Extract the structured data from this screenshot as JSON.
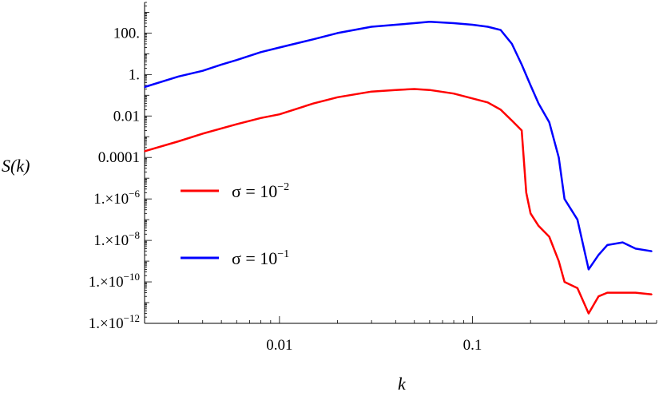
{
  "chart_data": {
    "type": "line",
    "title": "",
    "xlabel": "k",
    "ylabel": "S(k)",
    "xscale": "log",
    "yscale": "log",
    "xlim": [
      0.002,
      0.9
    ],
    "ylim": [
      1e-12,
      3000
    ],
    "grid": false,
    "legend_position": "center-left",
    "x_ticks": [
      {
        "value": 0.01,
        "label": "0.01"
      },
      {
        "value": 0.1,
        "label": "0.1"
      }
    ],
    "y_ticks": [
      {
        "value": 100,
        "label": "100."
      },
      {
        "value": 1,
        "label": "1."
      },
      {
        "value": 0.01,
        "label": "0.01"
      },
      {
        "value": 0.0001,
        "label": "0.0001"
      },
      {
        "value": 1e-06,
        "label": "1.×10",
        "exp": "−6"
      },
      {
        "value": 1e-08,
        "label": "1.×10",
        "exp": "−8"
      },
      {
        "value": 1e-10,
        "label": "1.×10",
        "exp": "−10"
      },
      {
        "value": 1e-12,
        "label": "1.×10",
        "exp": "−12"
      }
    ],
    "series": [
      {
        "name": "σ = 10⁻²",
        "legend_main": "σ = 10",
        "legend_exp": "−2",
        "color": "#ff0000",
        "x": [
          0.002,
          0.003,
          0.004,
          0.006,
          0.008,
          0.01,
          0.015,
          0.02,
          0.03,
          0.04,
          0.05,
          0.06,
          0.08,
          0.1,
          0.12,
          0.14,
          0.16,
          0.18,
          0.19,
          0.2,
          0.22,
          0.25,
          0.28,
          0.3,
          0.35,
          0.4,
          0.45,
          0.5,
          0.6,
          0.7,
          0.85
        ],
        "y": [
          0.0002,
          0.0006,
          0.0014,
          0.004,
          0.008,
          0.012,
          0.04,
          0.08,
          0.15,
          0.18,
          0.2,
          0.18,
          0.12,
          0.07,
          0.045,
          0.02,
          0.006,
          0.002,
          2e-06,
          2e-07,
          5e-08,
          1.5e-08,
          1e-09,
          1e-10,
          5e-11,
          3e-12,
          2e-11,
          3e-11,
          3e-11,
          3e-11,
          2.5e-11
        ]
      },
      {
        "name": "σ = 10⁻¹",
        "legend_main": "σ = 10",
        "legend_exp": "−1",
        "color": "#0000ff",
        "x": [
          0.002,
          0.003,
          0.004,
          0.005,
          0.006,
          0.008,
          0.01,
          0.015,
          0.02,
          0.03,
          0.04,
          0.05,
          0.06,
          0.08,
          0.1,
          0.12,
          0.14,
          0.16,
          0.18,
          0.2,
          0.22,
          0.25,
          0.28,
          0.3,
          0.35,
          0.4,
          0.45,
          0.5,
          0.6,
          0.7,
          0.85
        ],
        "y": [
          0.25,
          0.8,
          1.5,
          3,
          5,
          12,
          20,
          50,
          100,
          200,
          250,
          300,
          350,
          300,
          250,
          200,
          140,
          30,
          3,
          0.3,
          0.04,
          0.005,
          0.0001,
          1e-06,
          1e-07,
          4e-10,
          2e-09,
          6e-09,
          8e-09,
          4e-09,
          3e-09
        ]
      }
    ]
  }
}
